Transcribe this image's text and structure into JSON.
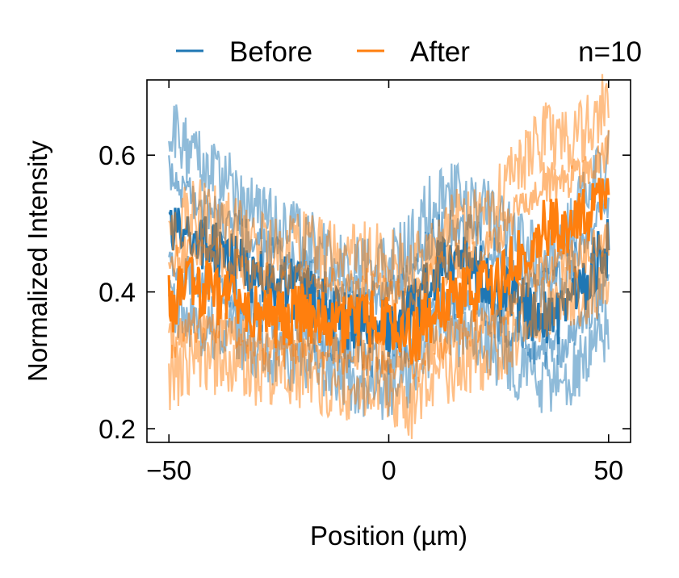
{
  "chart_data": {
    "type": "line",
    "title": "",
    "xlabel": "Position (µm)",
    "ylabel": "Normalized Intensity",
    "xlim": [
      -55,
      55
    ],
    "ylim": [
      0.18,
      0.71
    ],
    "xticks": [
      -50,
      0,
      50
    ],
    "xtick_labels": [
      "−50",
      "0",
      "50"
    ],
    "yticks": [
      0.2,
      0.4,
      0.6
    ],
    "ytick_labels": [
      "0.2",
      "0.4",
      "0.6"
    ],
    "grid": false,
    "legend_position": "top",
    "annotation": "n=10",
    "x": [
      -50,
      -45,
      -40,
      -35,
      -30,
      -25,
      -20,
      -15,
      -10,
      -5,
      0,
      5,
      10,
      15,
      20,
      25,
      30,
      35,
      40,
      45,
      50
    ],
    "series": [
      {
        "name": "Before",
        "color": "#1f77b4",
        "mean": [
          0.5,
          0.48,
          0.46,
          0.44,
          0.42,
          0.41,
          0.4,
          0.38,
          0.36,
          0.35,
          0.35,
          0.37,
          0.43,
          0.44,
          0.43,
          0.4,
          0.38,
          0.36,
          0.37,
          0.42,
          0.47
        ],
        "upper": [
          0.64,
          0.6,
          0.57,
          0.55,
          0.52,
          0.5,
          0.48,
          0.46,
          0.44,
          0.43,
          0.44,
          0.47,
          0.54,
          0.55,
          0.53,
          0.5,
          0.47,
          0.45,
          0.47,
          0.55,
          0.6
        ],
        "lower": [
          0.38,
          0.36,
          0.35,
          0.34,
          0.32,
          0.31,
          0.3,
          0.29,
          0.28,
          0.26,
          0.26,
          0.28,
          0.33,
          0.34,
          0.33,
          0.31,
          0.29,
          0.27,
          0.27,
          0.31,
          0.35
        ]
      },
      {
        "name": "After",
        "color": "#ff7f0e",
        "mean": [
          0.38,
          0.41,
          0.4,
          0.38,
          0.37,
          0.36,
          0.37,
          0.36,
          0.35,
          0.36,
          0.35,
          0.33,
          0.37,
          0.39,
          0.4,
          0.41,
          0.46,
          0.49,
          0.5,
          0.51,
          0.54
        ],
        "upper": [
          0.48,
          0.52,
          0.51,
          0.49,
          0.47,
          0.46,
          0.47,
          0.46,
          0.45,
          0.46,
          0.45,
          0.43,
          0.47,
          0.5,
          0.51,
          0.54,
          0.59,
          0.63,
          0.62,
          0.64,
          0.68
        ],
        "lower": [
          0.27,
          0.3,
          0.3,
          0.29,
          0.28,
          0.27,
          0.28,
          0.27,
          0.26,
          0.27,
          0.26,
          0.23,
          0.27,
          0.29,
          0.3,
          0.31,
          0.35,
          0.38,
          0.39,
          0.4,
          0.42
        ]
      }
    ]
  }
}
